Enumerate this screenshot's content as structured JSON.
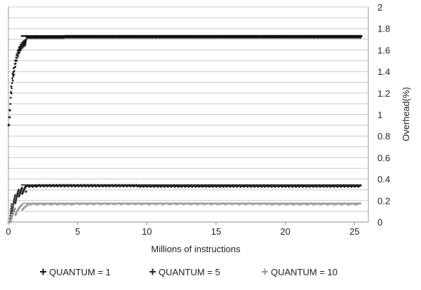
{
  "chart_data": {
    "type": "scatter",
    "title": "",
    "xlabel": "Millions of instructions",
    "ylabel": "Overhead(%)",
    "xlim": [
      0,
      26
    ],
    "ylim": [
      0,
      2
    ],
    "x_ticks": [
      0,
      5,
      10,
      15,
      20,
      25
    ],
    "y_ticks": [
      0,
      0.2,
      0.4,
      0.6,
      0.8,
      1,
      1.2,
      1.4,
      1.6,
      1.8,
      2
    ],
    "y_tick_labels": [
      "0",
      "0.2",
      "0.4",
      "0.6",
      "0.8",
      "1",
      "1.2",
      "1.4",
      "1.6",
      "1.8",
      "2"
    ],
    "x_tick_labels": [
      "0",
      "5",
      "10",
      "15",
      "20",
      "25"
    ],
    "grid": "horizontal",
    "y_axis_side": "right",
    "legend_position": "bottom",
    "series": [
      {
        "name": "QUANTUM = 1",
        "color": "#111111",
        "marker": "plus",
        "x_start": 0.1,
        "x_end": 25.5,
        "steady_value": 1.73,
        "initial_value": 0.9,
        "sawtooth_dip": 0.05,
        "sawtooth_period": 0.1
      },
      {
        "name": "QUANTUM = 5",
        "color": "#222222",
        "marker": "plus",
        "x_start": 0.1,
        "x_end": 25.5,
        "steady_value": 0.345,
        "initial_value": 0.0,
        "sawtooth_dip": 0.05,
        "sawtooth_period": 0.25
      },
      {
        "name": "QUANTUM = 10",
        "color": "#999999",
        "marker": "plus",
        "x_start": 0.2,
        "x_end": 25.5,
        "steady_value": 0.175,
        "initial_value": 0.0,
        "sawtooth_dip": 0.04,
        "sawtooth_period": 0.5
      }
    ]
  }
}
